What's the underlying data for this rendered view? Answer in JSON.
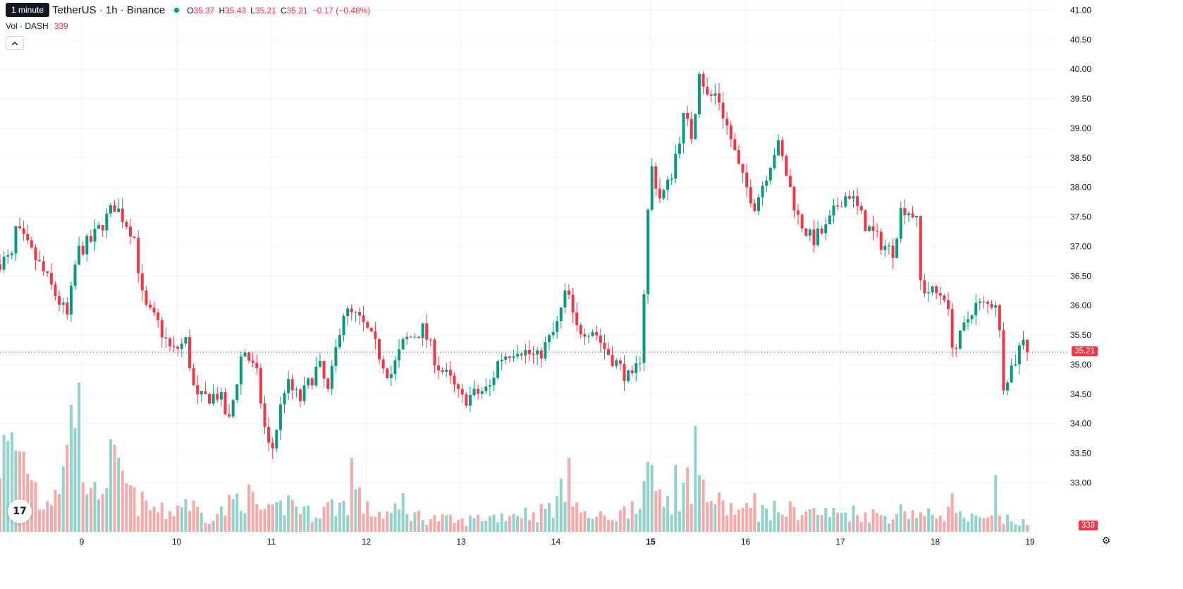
{
  "header": {
    "tooltip": "1 minute",
    "symbol": "TetherUS · 1h · Binance",
    "open_key": "O",
    "open": "35.37",
    "high_key": "H",
    "high": "35.43",
    "low_key": "L",
    "low": "35.21",
    "close_key": "C",
    "close": "35.21",
    "change": "−0.17 (−0.48%)"
  },
  "volume_legend": {
    "label": "Vol · DASH",
    "value": "339"
  },
  "collapse_icon": "chevron-up-icon",
  "price_tag": "35.21",
  "volume_tag": "339",
  "colors": {
    "up": "#089981",
    "down": "#f23645",
    "up_vol": "#92d2cc",
    "down_vol": "#f7a9a7",
    "grid": "#f0f3fa"
  },
  "chart_data": {
    "type": "candlestick",
    "interval": "1h",
    "y_ticks": [
      "41.00",
      "40.50",
      "40.00",
      "39.50",
      "39.00",
      "38.50",
      "38.00",
      "37.50",
      "37.00",
      "36.50",
      "36.00",
      "35.50",
      "35.00",
      "34.50",
      "34.00",
      "33.50",
      "33.00"
    ],
    "ylim": [
      32.6,
      41.1
    ],
    "x_ticks": [
      {
        "label": "9",
        "day": 1,
        "bold": false
      },
      {
        "label": "10",
        "day": 2,
        "bold": false
      },
      {
        "label": "11",
        "day": 3,
        "bold": false
      },
      {
        "label": "12",
        "day": 4,
        "bold": false
      },
      {
        "label": "13",
        "day": 5,
        "bold": false
      },
      {
        "label": "14",
        "day": 6,
        "bold": false
      },
      {
        "label": "15",
        "day": 7,
        "bold": true
      },
      {
        "label": "16",
        "day": 8,
        "bold": false
      },
      {
        "label": "17",
        "day": 9,
        "bold": false
      },
      {
        "label": "18",
        "day": 10,
        "bold": false
      },
      {
        "label": "19",
        "day": 11,
        "bold": false
      }
    ],
    "last_price": 35.21,
    "anchors": [
      [
        0.0,
        36.7
      ],
      [
        0.28,
        36.8
      ],
      [
        0.3,
        37.3
      ],
      [
        0.55,
        36.7
      ],
      [
        0.85,
        35.8
      ],
      [
        0.95,
        36.9
      ],
      [
        1.1,
        37.1
      ],
      [
        1.35,
        37.7
      ],
      [
        1.55,
        37.2
      ],
      [
        1.65,
        36.0
      ],
      [
        1.8,
        35.7
      ],
      [
        1.95,
        35.2
      ],
      [
        2.1,
        35.4
      ],
      [
        2.2,
        34.4
      ],
      [
        2.45,
        34.5
      ],
      [
        2.55,
        34.0
      ],
      [
        2.7,
        35.3
      ],
      [
        2.85,
        34.8
      ],
      [
        2.95,
        33.7
      ],
      [
        3.0,
        33.5
      ],
      [
        3.15,
        34.7
      ],
      [
        3.3,
        34.4
      ],
      [
        3.5,
        35.0
      ],
      [
        3.6,
        34.5
      ],
      [
        3.75,
        35.9
      ],
      [
        3.9,
        35.8
      ],
      [
        4.0,
        35.6
      ],
      [
        4.1,
        35.3
      ],
      [
        4.25,
        34.8
      ],
      [
        4.4,
        35.4
      ],
      [
        4.6,
        35.6
      ],
      [
        4.75,
        35.0
      ],
      [
        4.9,
        34.7
      ],
      [
        5.0,
        34.4
      ],
      [
        5.3,
        34.6
      ],
      [
        5.4,
        35.1
      ],
      [
        5.6,
        35.3
      ],
      [
        5.8,
        35.1
      ],
      [
        6.0,
        35.6
      ],
      [
        6.12,
        36.3
      ],
      [
        6.2,
        35.6
      ],
      [
        6.4,
        35.6
      ],
      [
        6.5,
        35.3
      ],
      [
        6.7,
        34.9
      ],
      [
        6.8,
        34.7
      ],
      [
        6.9,
        35.2
      ],
      [
        6.95,
        37.0
      ],
      [
        7.0,
        38.4
      ],
      [
        7.1,
        37.8
      ],
      [
        7.2,
        38.1
      ],
      [
        7.35,
        39.2
      ],
      [
        7.45,
        38.8
      ],
      [
        7.5,
        40.1
      ],
      [
        7.6,
        39.5
      ],
      [
        7.7,
        39.6
      ],
      [
        7.75,
        39.3
      ],
      [
        7.85,
        38.8
      ],
      [
        7.95,
        38.2
      ],
      [
        8.1,
        37.7
      ],
      [
        8.3,
        38.6
      ],
      [
        8.35,
        38.7
      ],
      [
        8.55,
        37.5
      ],
      [
        8.7,
        37.1
      ],
      [
        8.85,
        37.3
      ],
      [
        9.0,
        37.8
      ],
      [
        9.1,
        37.9
      ],
      [
        9.25,
        37.4
      ],
      [
        9.4,
        37.1
      ],
      [
        9.55,
        36.9
      ],
      [
        9.65,
        37.7
      ],
      [
        9.8,
        37.5
      ],
      [
        9.85,
        36.3
      ],
      [
        10.0,
        36.2
      ],
      [
        10.1,
        36.2
      ],
      [
        10.2,
        35.2
      ],
      [
        10.3,
        35.6
      ],
      [
        10.4,
        36.0
      ],
      [
        10.55,
        36.0
      ],
      [
        10.65,
        36.1
      ],
      [
        10.72,
        34.7
      ],
      [
        10.85,
        35.1
      ],
      [
        10.95,
        35.6
      ],
      [
        11.0,
        35.21
      ]
    ],
    "volume_anchors": [
      [
        0.0,
        95
      ],
      [
        0.3,
        120
      ],
      [
        0.48,
        90
      ],
      [
        0.55,
        40
      ],
      [
        0.7,
        60
      ],
      [
        0.82,
        85
      ],
      [
        0.95,
        180
      ],
      [
        1.1,
        40
      ],
      [
        1.3,
        95
      ],
      [
        1.45,
        70
      ],
      [
        1.55,
        45
      ],
      [
        1.7,
        35
      ],
      [
        1.9,
        25
      ],
      [
        2.1,
        45
      ],
      [
        2.3,
        20
      ],
      [
        2.5,
        30
      ],
      [
        2.7,
        55
      ],
      [
        2.9,
        30
      ],
      [
        3.0,
        25
      ],
      [
        3.2,
        45
      ],
      [
        3.4,
        25
      ],
      [
        3.6,
        35
      ],
      [
        3.8,
        40
      ],
      [
        3.85,
        70
      ],
      [
        4.0,
        30
      ],
      [
        4.2,
        25
      ],
      [
        4.4,
        30
      ],
      [
        4.6,
        20
      ],
      [
        4.8,
        18
      ],
      [
        5.0,
        14
      ],
      [
        5.2,
        20
      ],
      [
        5.4,
        22
      ],
      [
        5.6,
        28
      ],
      [
        5.8,
        25
      ],
      [
        6.0,
        40
      ],
      [
        6.1,
        60
      ],
      [
        6.3,
        22
      ],
      [
        6.5,
        20
      ],
      [
        6.7,
        25
      ],
      [
        6.88,
        55
      ],
      [
        7.0,
        70
      ],
      [
        7.15,
        50
      ],
      [
        7.3,
        45
      ],
      [
        7.45,
        85
      ],
      [
        7.55,
        60
      ],
      [
        7.7,
        40
      ],
      [
        7.9,
        30
      ],
      [
        8.1,
        28
      ],
      [
        8.3,
        30
      ],
      [
        8.5,
        30
      ],
      [
        8.7,
        28
      ],
      [
        8.9,
        25
      ],
      [
        9.1,
        28
      ],
      [
        9.3,
        25
      ],
      [
        9.5,
        22
      ],
      [
        9.7,
        32
      ],
      [
        9.9,
        22
      ],
      [
        10.1,
        28
      ],
      [
        10.3,
        20
      ],
      [
        10.5,
        16
      ],
      [
        10.65,
        18
      ],
      [
        10.8,
        16
      ],
      [
        11.0,
        10
      ]
    ],
    "volume_spikes": [
      [
        0.88,
        180
      ],
      [
        3.86,
        105
      ],
      [
        6.12,
        105
      ],
      [
        7.47,
        150
      ],
      [
        7.26,
        95
      ],
      [
        10.63,
        80
      ],
      [
        10.18,
        55
      ],
      [
        4.4,
        55
      ],
      [
        8.08,
        55
      ],
      [
        1.37,
        105
      ],
      [
        0.02,
        95
      ]
    ]
  }
}
